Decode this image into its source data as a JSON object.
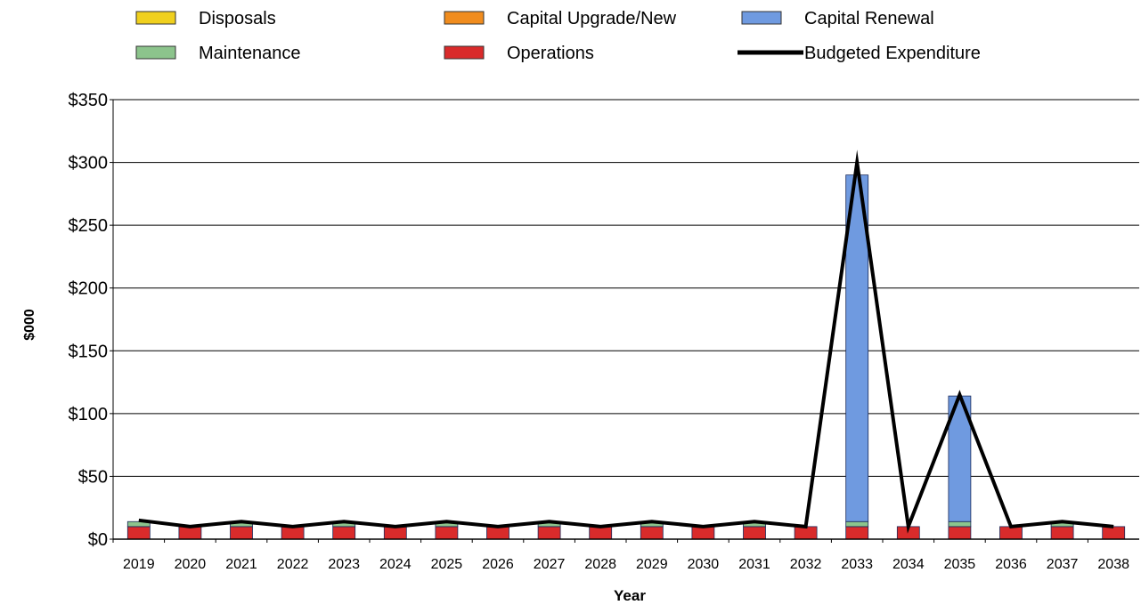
{
  "chart_data": {
    "type": "bar",
    "stacked": true,
    "categories": [
      "2019",
      "2020",
      "2021",
      "2022",
      "2023",
      "2024",
      "2025",
      "2026",
      "2027",
      "2028",
      "2029",
      "2030",
      "2031",
      "2032",
      "2033",
      "2034",
      "2035",
      "2036",
      "2037",
      "2038"
    ],
    "series": [
      {
        "name": "Operations",
        "color": "#d92b2b",
        "values": [
          10,
          10,
          10,
          10,
          10,
          10,
          10,
          10,
          10,
          10,
          10,
          10,
          10,
          10,
          10,
          10,
          10,
          10,
          10,
          10
        ]
      },
      {
        "name": "Maintenance",
        "color": "#8cc48c",
        "values": [
          4,
          0,
          4,
          0,
          4,
          0,
          4,
          0,
          4,
          0,
          4,
          0,
          4,
          0,
          4,
          0,
          4,
          0,
          4,
          0
        ]
      },
      {
        "name": "Capital Renewal",
        "color": "#6f9ae0",
        "values": [
          0,
          0,
          0,
          0,
          0,
          0,
          0,
          0,
          0,
          0,
          0,
          0,
          0,
          0,
          276,
          0,
          100,
          0,
          0,
          0
        ]
      },
      {
        "name": "Capital Upgrade/New",
        "color": "#f08c1e",
        "values": [
          0,
          0,
          0,
          0,
          0,
          0,
          0,
          0,
          0,
          0,
          0,
          0,
          0,
          0,
          0,
          0,
          0,
          0,
          0,
          0
        ]
      },
      {
        "name": "Disposals",
        "color": "#f0d01e",
        "values": [
          0,
          0,
          0,
          0,
          0,
          0,
          0,
          0,
          0,
          0,
          0,
          0,
          0,
          0,
          0,
          0,
          0,
          0,
          0,
          0
        ]
      }
    ],
    "line": {
      "name": "Budgeted Expenditure",
      "color": "#000000",
      "values": [
        15,
        10,
        14,
        10,
        14,
        10,
        14,
        10,
        14,
        10,
        14,
        10,
        14,
        10,
        300,
        10,
        115,
        10,
        14,
        10
      ]
    },
    "legend_order": [
      "Disposals",
      "Capital Upgrade/New",
      "Capital Renewal",
      "Maintenance",
      "Operations",
      "Budgeted Expenditure"
    ],
    "ylim": [
      0,
      350
    ],
    "yticks": [
      0,
      50,
      100,
      150,
      200,
      250,
      300,
      350
    ],
    "ytick_labels": [
      "$0",
      "$50",
      "$100",
      "$150",
      "$200",
      "$250",
      "$300",
      "$350"
    ],
    "xlabel": "Year",
    "ylabel": "$000",
    "grid": "horizontal",
    "legend_position": "top"
  }
}
